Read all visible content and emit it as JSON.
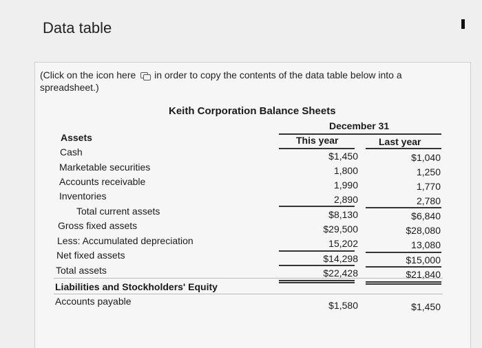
{
  "window": {
    "title": "Data table"
  },
  "note": {
    "before_icon": "(Click on the icon here",
    "after_icon": "in order to copy the contents of the data table below into a spreadsheet.)",
    "icon": "copy-icon"
  },
  "table": {
    "title": "Keith Corporation Balance Sheets",
    "period_header": "December 31",
    "col_this": "This year",
    "col_last": "Last year",
    "section_assets": "Assets",
    "section_liabilities": "Liabilities and Stockholders' Equity",
    "rows": [
      {
        "label": "Cash",
        "this": "$1,450",
        "last": "$1,040"
      },
      {
        "label": "Marketable securities",
        "this": "1,800",
        "last": "1,250"
      },
      {
        "label": "Accounts receivable",
        "this": "1,990",
        "last": "1,770"
      },
      {
        "label": "Inventories",
        "this": "2,890",
        "last": "2,780"
      },
      {
        "label": "Total current assets",
        "this": "$8,130",
        "last": "$6,840"
      },
      {
        "label": "Gross fixed assets",
        "this": "$29,500",
        "last": "$28,080"
      },
      {
        "label": "Less: Accumulated depreciation",
        "this": "15,202",
        "last": "13,080"
      },
      {
        "label": "Net fixed assets",
        "this": "$14,298",
        "last": "$15,000"
      },
      {
        "label": "Total assets",
        "this": "$22,428",
        "last": "$21,840"
      },
      {
        "label": "Accounts payable",
        "this": "$1,580",
        "last": "$1,450"
      }
    ]
  }
}
